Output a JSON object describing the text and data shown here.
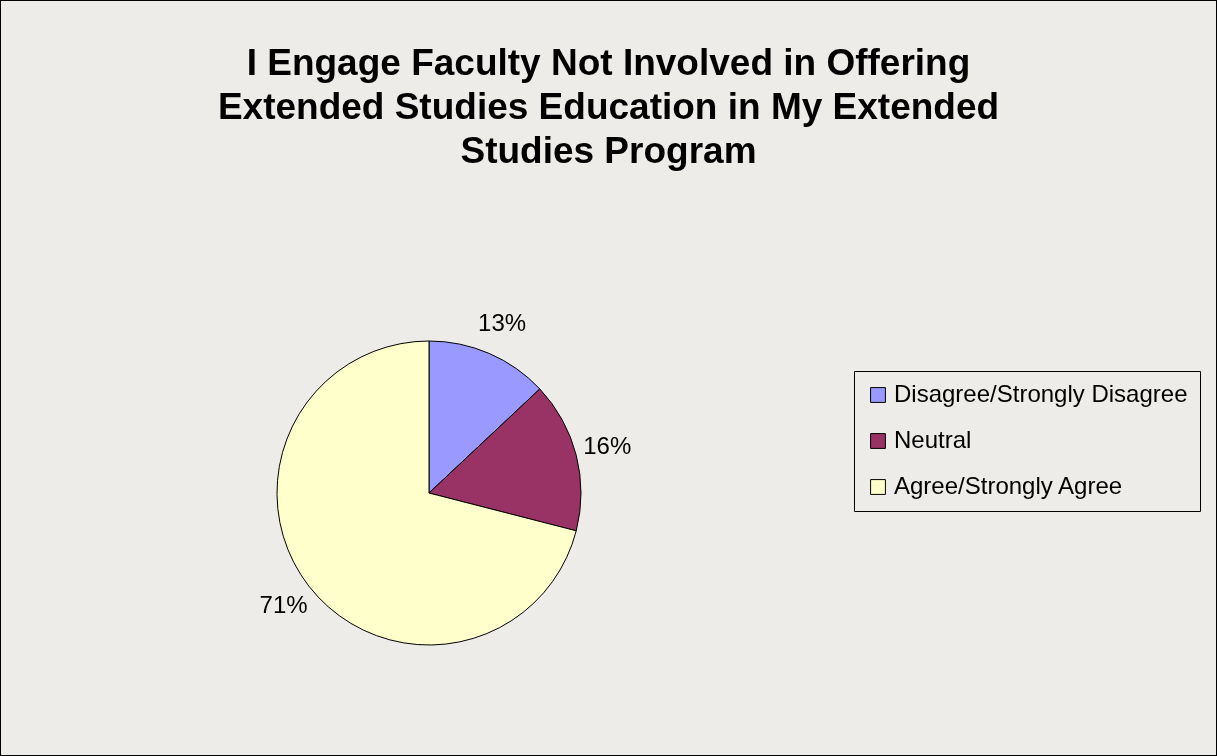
{
  "chart_data": {
    "type": "pie",
    "title": "I Engage Faculty Not Involved in Offering Extended Studies Education in My Extended Studies Program",
    "categories": [
      "Disagree/Strongly Disagree",
      "Neutral",
      "Agree/Strongly Agree"
    ],
    "values": [
      13,
      16,
      71
    ],
    "colors": [
      "#9999ff",
      "#993366",
      "#ffffcc"
    ],
    "value_labels": [
      "13%",
      "16%",
      "71%"
    ],
    "legend": "right"
  }
}
